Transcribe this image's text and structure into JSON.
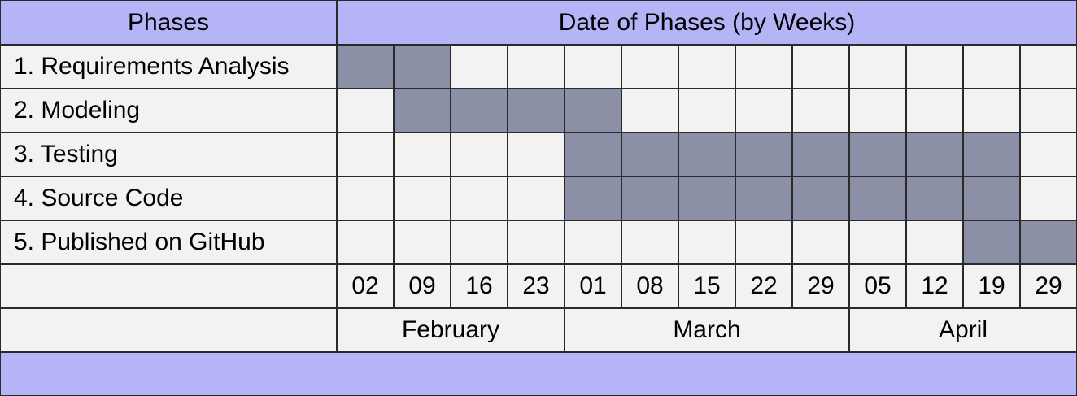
{
  "colors": {
    "header_bg": "#b4b4f7",
    "cell_bg": "#f2f2f2",
    "bar_fill": "#8c90a6",
    "grid_line": "#2a2a2a"
  },
  "chart_data": {
    "type": "table",
    "headers": {
      "phases": "Phases",
      "dates": "Date of Phases (by Weeks)"
    },
    "weeks": [
      "02",
      "09",
      "16",
      "23",
      "01",
      "08",
      "15",
      "22",
      "29",
      "05",
      "12",
      "19",
      "29"
    ],
    "months": [
      {
        "label": "February",
        "span": 4
      },
      {
        "label": "March",
        "span": 5
      },
      {
        "label": "April",
        "span": 4
      }
    ],
    "phases": [
      {
        "label": "1. Requirements Analysis",
        "start_week": 0,
        "end_week": 1
      },
      {
        "label": "2. Modeling",
        "start_week": 1,
        "end_week": 4
      },
      {
        "label": "3. Testing",
        "start_week": 4,
        "end_week": 11
      },
      {
        "label": "4. Source Code",
        "start_week": 4,
        "end_week": 11
      },
      {
        "label": "5. Published on GitHub",
        "start_week": 11,
        "end_week": 12
      }
    ]
  }
}
